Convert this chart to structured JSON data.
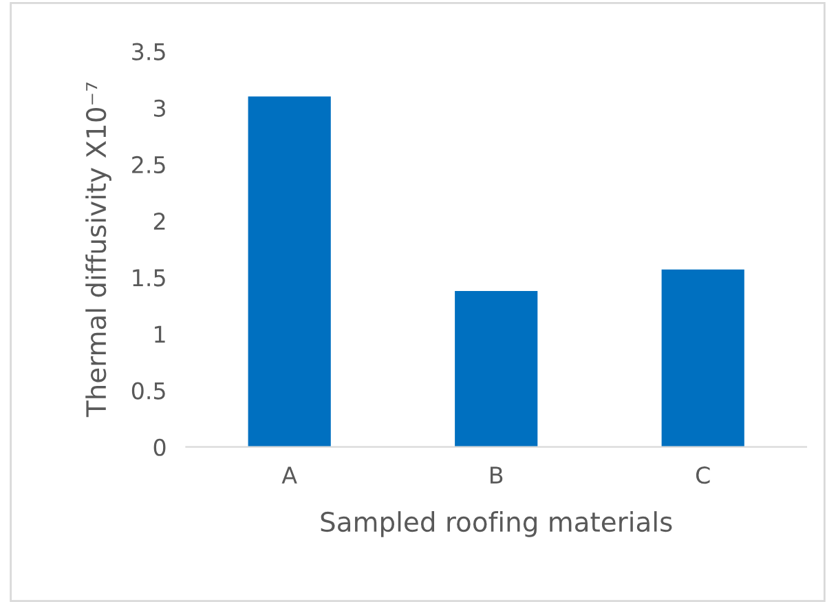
{
  "chart_data": {
    "type": "bar",
    "xlabel": "Sampled roofing materials",
    "ylabel": "Thermal diffusivity X10⁻⁷",
    "categories": [
      "A",
      "B",
      "C"
    ],
    "values": [
      3.1,
      1.38,
      1.57
    ],
    "color": "#0070c0",
    "ylim": [
      0,
      3.5
    ],
    "yticks": [
      0,
      0.5,
      1,
      1.5,
      2,
      2.5,
      3,
      3.5
    ],
    "grid": false
  }
}
